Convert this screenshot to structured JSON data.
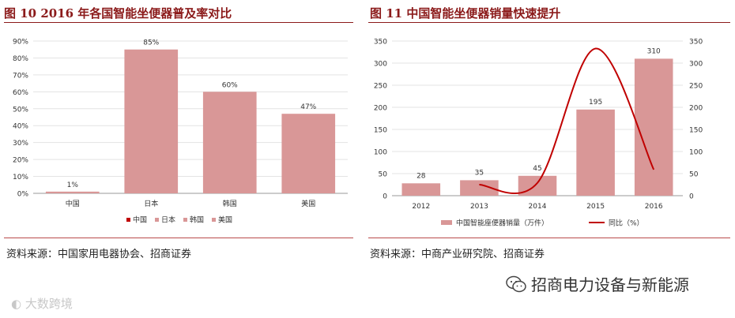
{
  "left": {
    "title": "图 10 2016 年各国智能坐便器普及率对比",
    "source": "资料来源：中国家用电器协会、招商证券"
  },
  "right": {
    "title": "图 11  中国智能坐便器销量快速提升",
    "source": "资料来源：中商产业研究院、招商证券"
  },
  "footer": {
    "brand": "招商电力设备与新能源",
    "watermark": "大数跨境"
  },
  "colors": {
    "bar": "#d99797",
    "line": "#c00000",
    "accent": "#8b1a1a"
  },
  "chart_data": [
    {
      "type": "bar",
      "categories": [
        "中国",
        "日本",
        "韩国",
        "美国"
      ],
      "values": [
        1,
        85,
        60,
        47
      ],
      "data_labels": [
        "1%",
        "85%",
        "60%",
        "47%"
      ],
      "ylim": [
        0,
        90
      ],
      "yticks": [
        "0%",
        "10%",
        "20%",
        "30%",
        "40%",
        "50%",
        "60%",
        "70%",
        "80%",
        "90%"
      ],
      "legend": [
        "中国",
        "日本",
        "韩国",
        "美国"
      ],
      "legend_position": "bottom",
      "title": "",
      "xlabel": "",
      "ylabel": ""
    },
    {
      "type": "bar",
      "categories": [
        "2012",
        "2013",
        "2014",
        "2015",
        "2016"
      ],
      "series": [
        {
          "name": "中国智能座便器销量（万件）",
          "type": "bar",
          "axis": "left",
          "values": [
            28,
            35,
            45,
            195,
            310
          ],
          "data_labels": [
            "28",
            "35",
            "45",
            "195",
            "310"
          ]
        },
        {
          "name": "同比（%）",
          "type": "line",
          "axis": "right",
          "values": [
            null,
            25,
            29,
            333,
            59
          ]
        }
      ],
      "ylim_left": [
        0,
        350
      ],
      "ylim_right": [
        0,
        350
      ],
      "yticks_left": [
        "0",
        "50",
        "100",
        "150",
        "200",
        "250",
        "300",
        "350"
      ],
      "yticks_right": [
        "0",
        "50",
        "100",
        "150",
        "200",
        "250",
        "300",
        "350"
      ],
      "legend_position": "bottom",
      "title": "",
      "xlabel": "",
      "ylabel": ""
    }
  ]
}
